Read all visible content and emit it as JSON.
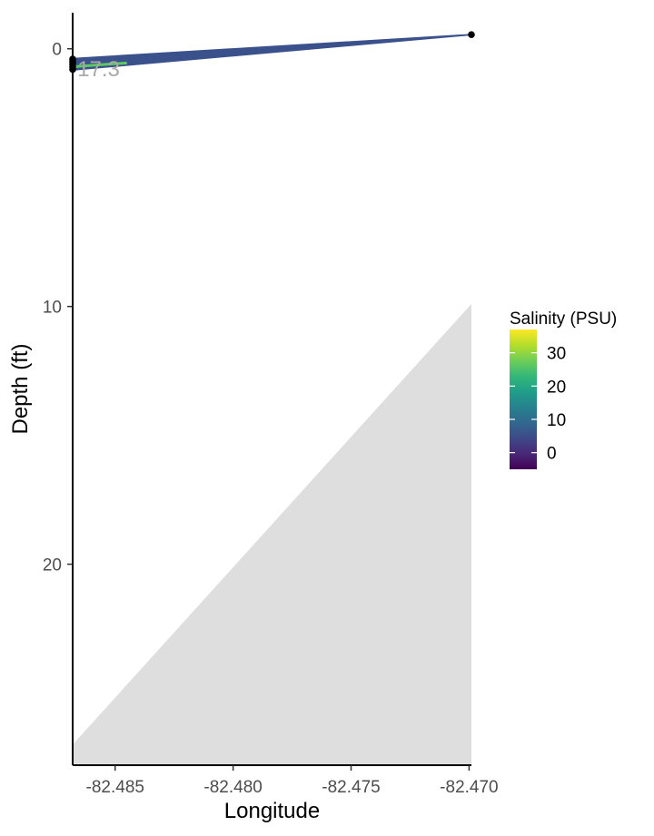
{
  "chart_data": {
    "type": "area",
    "xlabel": "Longitude",
    "ylabel": "Depth (ft)",
    "xlim": [
      -82.4868,
      -82.4699
    ],
    "ylim": [
      27.8,
      -1.4
    ],
    "y_reversed": true,
    "x_ticks": [
      -82.485,
      -82.48,
      -82.475,
      -82.47
    ],
    "x_tick_labels": [
      "-82.485",
      "-82.480",
      "-82.475",
      "-82.470"
    ],
    "y_ticks": [
      0,
      10,
      20
    ],
    "y_tick_labels": [
      "0",
      "10",
      "20"
    ],
    "grid": false,
    "seafloor": {
      "color": "#dedede",
      "points": [
        {
          "x": -82.4868,
          "y": 27.8
        },
        {
          "x": -82.4868,
          "y": 27.0
        },
        {
          "x": -82.4699,
          "y": 9.9
        },
        {
          "x": -82.4699,
          "y": 27.8
        }
      ]
    },
    "stations": [
      {
        "x": -82.4868,
        "y": 0.4
      },
      {
        "x": -82.4868,
        "y": 0.5
      },
      {
        "x": -82.4868,
        "y": 0.6
      },
      {
        "x": -82.4868,
        "y": 0.7
      },
      {
        "x": -82.4868,
        "y": 0.8
      },
      {
        "x": -82.4699,
        "y": -0.55
      }
    ],
    "salinity_field": {
      "color": "#3b518b",
      "points": [
        {
          "x": -82.4868,
          "y": 0.35
        },
        {
          "x": -82.4699,
          "y": -0.58
        },
        {
          "x": -82.4699,
          "y": -0.52
        },
        {
          "x": -82.4868,
          "y": 0.85
        }
      ]
    },
    "contour": {
      "value": 17.3,
      "label": "17.3",
      "color": "#5ec962",
      "points": [
        {
          "x": -82.4868,
          "y": 0.7
        },
        {
          "x": -82.4856,
          "y": 0.62
        },
        {
          "x": -82.4845,
          "y": 0.55
        }
      ],
      "label_at": {
        "x": -82.4866,
        "y": 0.75
      }
    },
    "legend": {
      "title": "Salinity (PSU)",
      "placement": "right",
      "range": [
        -5,
        37
      ],
      "ticks": [
        0,
        10,
        20,
        30
      ],
      "tick_labels": [
        "0",
        "10",
        "20",
        "30"
      ],
      "colormap": [
        "#440154",
        "#482878",
        "#3e4989",
        "#31688e",
        "#26828e",
        "#1f9e89",
        "#35b779",
        "#6ece58",
        "#b5de2b",
        "#fde725"
      ]
    }
  }
}
